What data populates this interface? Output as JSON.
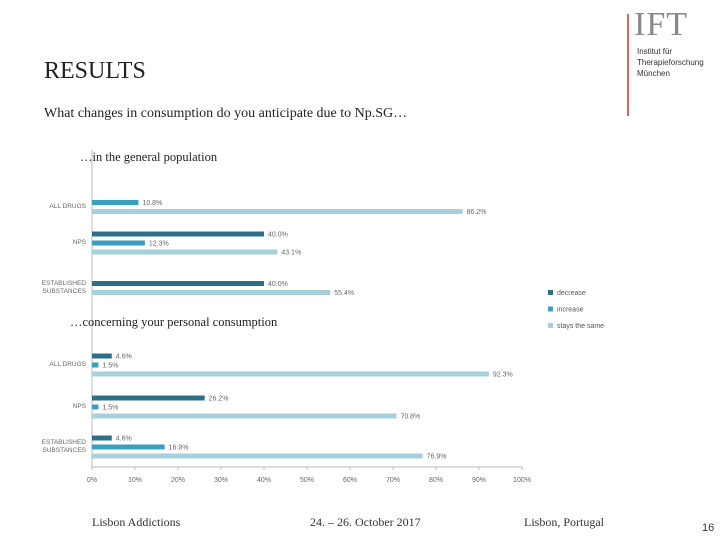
{
  "header": {
    "title": "RESULTS",
    "logo": "IFT",
    "institute": [
      "Institut für",
      "Therapieforschung",
      "München"
    ]
  },
  "question": "What changes in consumption do you anticipate due to Np.SG…",
  "chart_data": [
    {
      "type": "bar",
      "orientation": "horizontal",
      "title": "…in the general population",
      "categories": [
        "ALL DRUGS",
        "NPS",
        "ESTABLISHED SUBSTANCES"
      ],
      "xlim": [
        0,
        100
      ],
      "series": [
        {
          "name": "decrease",
          "color": "#2e6f88",
          "values": [
            null,
            40.0,
            40.0
          ],
          "value_labels": [
            null,
            "40.0%",
            "40.0%"
          ]
        },
        {
          "name": "increase",
          "color": "#3b9fc2",
          "values": [
            10.8,
            12.3,
            null
          ],
          "value_labels": [
            "10.8%",
            "12.3%",
            null
          ]
        },
        {
          "name": "stays the same",
          "color": "#a6d0db",
          "values": [
            86.2,
            43.1,
            55.4
          ],
          "value_labels": [
            "86.2%",
            "43.1%",
            "55.4%"
          ]
        }
      ]
    },
    {
      "type": "bar",
      "orientation": "horizontal",
      "title": "…concerning your personal consumption",
      "categories": [
        "ALL DRUGS",
        "NPS",
        "ESTABLISHED SUBSTANCES"
      ],
      "xlim": [
        0,
        100
      ],
      "xticks": [
        {
          "value": 0,
          "label": "0%"
        },
        {
          "value": 10,
          "label": "10%"
        },
        {
          "value": 20,
          "label": "20%"
        },
        {
          "value": 30,
          "label": "30%"
        },
        {
          "value": 40,
          "label": "40%"
        },
        {
          "value": 50,
          "label": "50%"
        },
        {
          "value": 60,
          "label": "60%"
        },
        {
          "value": 70,
          "label": "70%"
        },
        {
          "value": 80,
          "label": "80%"
        },
        {
          "value": 90,
          "label": "90%"
        },
        {
          "value": 100,
          "label": "100%"
        }
      ],
      "series": [
        {
          "color": "#2e6f88",
          "values": [
            4.6,
            26.2,
            4.6
          ],
          "value_labels": [
            "4.6%",
            "26.2%",
            "4.6%"
          ]
        },
        {
          "color": "#3b9fc2",
          "values": [
            1.5,
            1.5,
            16.9
          ],
          "value_labels": [
            "1.5%",
            "1.5%",
            "16.9%"
          ]
        },
        {
          "color": "#a6d0db",
          "values": [
            92.3,
            70.8,
            76.9
          ],
          "value_labels": [
            "92.3%",
            "70.8%",
            "76.9%"
          ]
        }
      ]
    }
  ],
  "footer": {
    "event": "Lisbon Addictions",
    "dates": "24. – 26. October 2017",
    "place": "Lisbon, Portugal",
    "page": "16"
  }
}
